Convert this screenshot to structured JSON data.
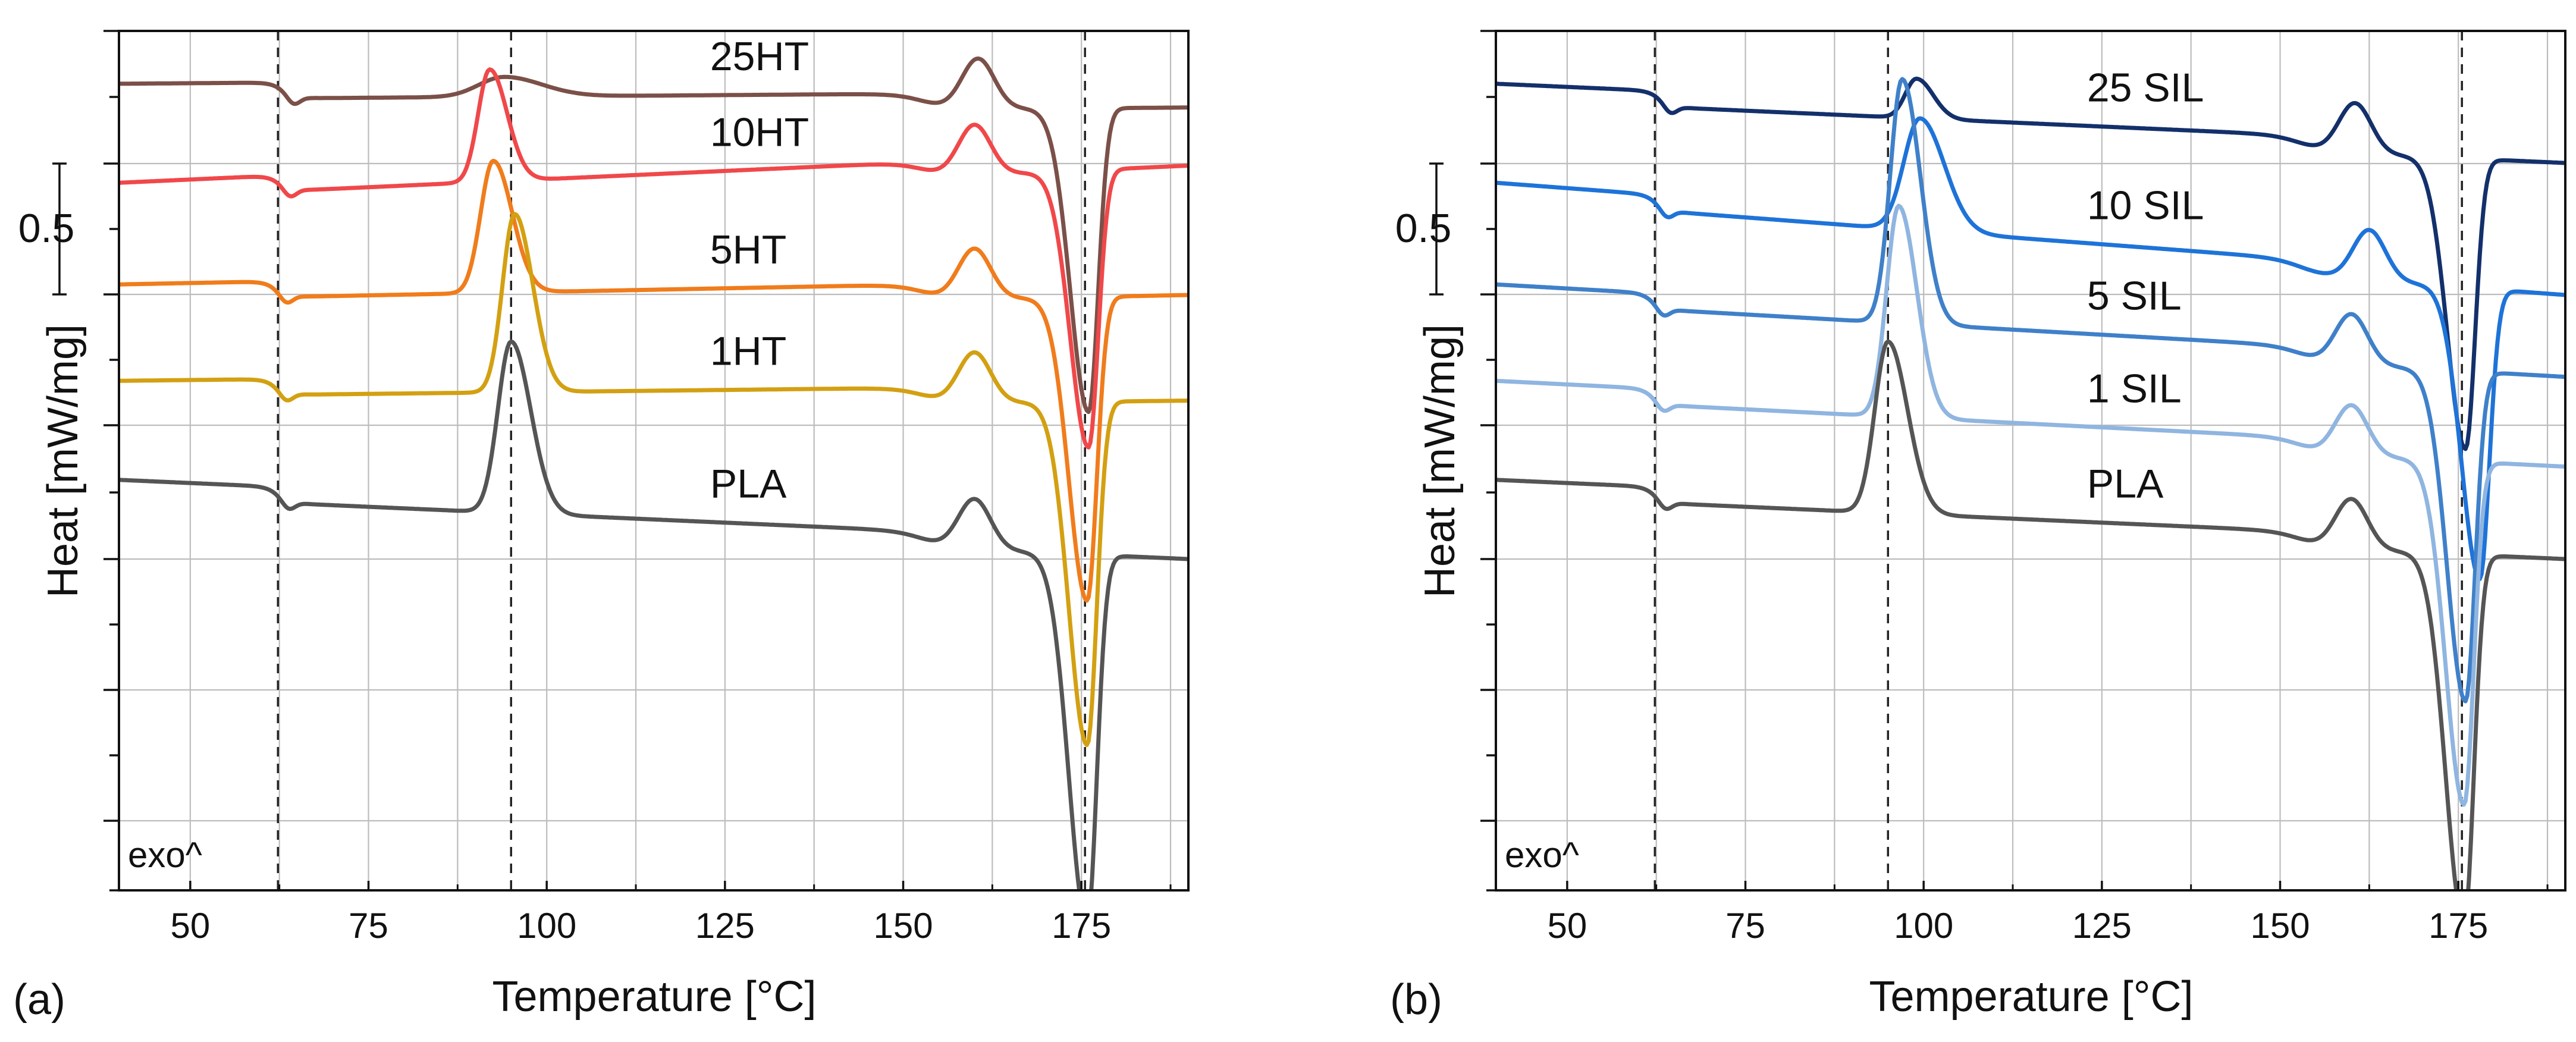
{
  "chart_data": [
    {
      "panel_label": "(a)",
      "type": "line",
      "xlabel": "Temperature [°C]",
      "ylabel": "Heat [mW/mg]",
      "xlim": [
        40,
        190
      ],
      "xticks": [
        50,
        75,
        100,
        125,
        150,
        175
      ],
      "scale_bar_label": "0.5",
      "exo_label": "exo^",
      "reference_lines_x": [
        62.3,
        95.0,
        175.5
      ],
      "series": [
        {
          "name": "25HT",
          "label": "25HT",
          "color": "#7b5048",
          "label_x": 125,
          "offset": 3.6,
          "tg": 63,
          "cc_peak": 94,
          "cc_height": 0.15,
          "cc_width": 5.0,
          "melt_shoulder": 160.5,
          "melt_peak": 176.0,
          "melt_depth": 2.3,
          "end_level": 3.42
        },
        {
          "name": "10HT",
          "label": "10HT",
          "color": "#f0484a",
          "label_x": 125,
          "offset": 2.85,
          "tg": 62.5,
          "cc_peak": 92,
          "cc_height": 0.85,
          "cc_width": 2.3,
          "melt_shoulder": 160.0,
          "melt_peak": 176.0,
          "melt_depth": 2.1,
          "end_level": 2.98
        },
        {
          "name": "5HT",
          "label": "5HT",
          "color": "#f07c1c",
          "label_x": 125,
          "offset": 2.08,
          "tg": 62.0,
          "cc_peak": 92.5,
          "cc_height": 1.0,
          "cc_width": 2.5,
          "melt_shoulder": 160.0,
          "melt_peak": 175.8,
          "melt_depth": 2.3,
          "end_level": 2.0
        },
        {
          "name": "1HT",
          "label": "1HT",
          "color": "#d3a012",
          "label_x": 125,
          "offset": 1.35,
          "tg": 62.0,
          "cc_peak": 95.5,
          "cc_height": 1.35,
          "cc_width": 2.4,
          "melt_shoulder": 160.0,
          "melt_peak": 175.8,
          "melt_depth": 2.6,
          "end_level": 1.2
        },
        {
          "name": "PLA",
          "label": "PLA",
          "color": "#555555",
          "label_x": 125,
          "offset": 0.6,
          "tg": 62.3,
          "cc_peak": 95.0,
          "cc_height": 1.3,
          "cc_width": 2.6,
          "melt_shoulder": 160.0,
          "melt_peak": 175.8,
          "melt_depth": 2.8,
          "end_level": 0.0
        }
      ]
    },
    {
      "panel_label": "(b)",
      "type": "line",
      "xlabel": "Temperature [°C]",
      "ylabel": "Heat [mW/mg]",
      "xlim": [
        40,
        190
      ],
      "xticks": [
        50,
        75,
        100,
        125,
        150,
        175
      ],
      "scale_bar_label": "0.5",
      "exo_label": "exo^",
      "reference_lines_x": [
        62.3,
        95.0,
        175.5
      ],
      "series": [
        {
          "name": "25 SIL",
          "label": "25 SIL",
          "color": "#13306b",
          "label_x": 125,
          "offset": 3.6,
          "tg": 63,
          "cc_peak": 99,
          "cc_height": 0.3,
          "cc_width": 2.2,
          "melt_shoulder": 160.5,
          "melt_peak": 176.0,
          "melt_depth": 2.2,
          "end_level": 3.0
        },
        {
          "name": "10 SIL",
          "label": "10 SIL",
          "color": "#1e73d8",
          "label_x": 125,
          "offset": 2.85,
          "tg": 62.5,
          "cc_peak": 99.5,
          "cc_height": 0.85,
          "cc_width": 3.2,
          "melt_shoulder": 162.5,
          "melt_peak": 178.0,
          "melt_depth": 2.2,
          "end_level": 2.0
        },
        {
          "name": "5 SIL",
          "label": "5 SIL",
          "color": "#3f80c9",
          "label_x": 125,
          "offset": 2.08,
          "tg": 62.0,
          "cc_peak": 97.0,
          "cc_height": 1.85,
          "cc_width": 2.4,
          "melt_shoulder": 160.0,
          "melt_peak": 176.0,
          "melt_depth": 2.5,
          "end_level": 1.38
        },
        {
          "name": "1 SIL",
          "label": "1 SIL",
          "color": "#8fb5e0",
          "label_x": 125,
          "offset": 1.35,
          "tg": 62.0,
          "cc_peak": 96.5,
          "cc_height": 1.6,
          "cc_width": 2.4,
          "melt_shoulder": 160.0,
          "melt_peak": 175.8,
          "melt_depth": 2.6,
          "end_level": 0.7
        },
        {
          "name": "PLA",
          "label": "PLA",
          "color": "#555555",
          "label_x": 125,
          "offset": 0.6,
          "tg": 62.3,
          "cc_peak": 95.0,
          "cc_height": 1.3,
          "cc_width": 2.6,
          "melt_shoulder": 160.0,
          "melt_peak": 175.8,
          "melt_depth": 2.8,
          "end_level": 0.0
        }
      ]
    }
  ]
}
